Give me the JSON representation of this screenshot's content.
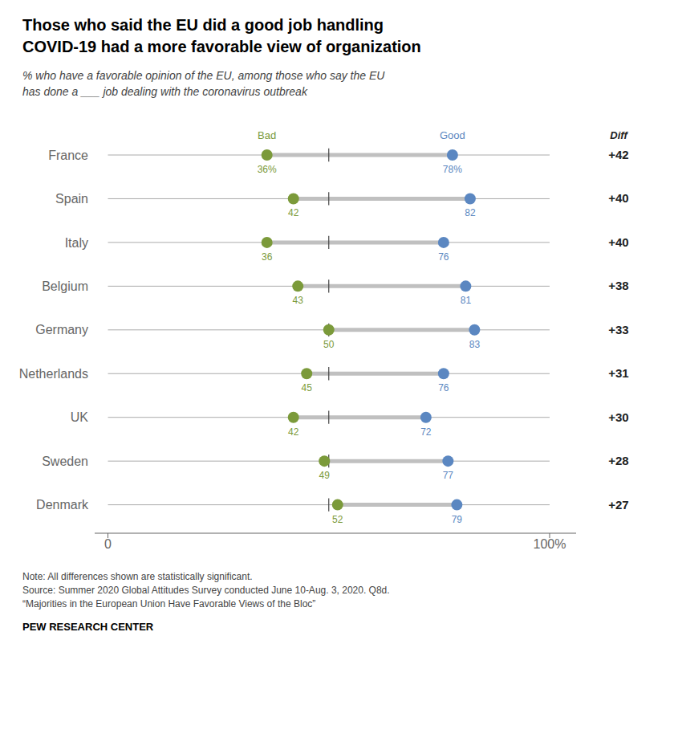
{
  "chart_data": {
    "type": "dot",
    "title": "Those who said the EU did a good job handling\nCOVID-19 had a more favorable view of organization",
    "subtitle": "% who have a favorable opinion of the EU, among those who say the EU\nhas done a ___ job dealing with the coronavirus outbreak",
    "categories": [
      "France",
      "Spain",
      "Italy",
      "Belgium",
      "Germany",
      "Netherlands",
      "UK",
      "Sweden",
      "Denmark"
    ],
    "series": [
      {
        "name": "Bad",
        "color": "#7b9a3a",
        "values": [
          36,
          42,
          36,
          43,
          50,
          45,
          42,
          49,
          52
        ],
        "value_labels": [
          "36%",
          "42",
          "36",
          "43",
          "50",
          "45",
          "42",
          "49",
          "52"
        ]
      },
      {
        "name": "Good",
        "color": "#5b87c1",
        "values": [
          78,
          82,
          76,
          81,
          83,
          76,
          72,
          77,
          79
        ],
        "value_labels": [
          "78%",
          "82",
          "76",
          "81",
          "83",
          "76",
          "72",
          "77",
          "79"
        ]
      }
    ],
    "diff": {
      "name": "Diff",
      "values": [
        42,
        40,
        40,
        38,
        33,
        31,
        30,
        28,
        27
      ],
      "value_labels": [
        "+42",
        "+40",
        "+40",
        "+38",
        "+33",
        "+31",
        "+30",
        "+28",
        "+27"
      ]
    },
    "midline": 50,
    "xlim": [
      -3,
      106
    ],
    "xticks": [
      0,
      {
        "value": 100,
        "label": "100%"
      }
    ],
    "data_labels": true,
    "grid": false,
    "note": "Note: All differences shown are statistically significant.\nSource: Summer 2020 Global Attitudes Survey conducted June 10-Aug. 3, 2020. Q8d.\n“Majorities in the European Union Have Favorable Views of the Bloc”",
    "source": "PEW RESEARCH CENTER"
  }
}
